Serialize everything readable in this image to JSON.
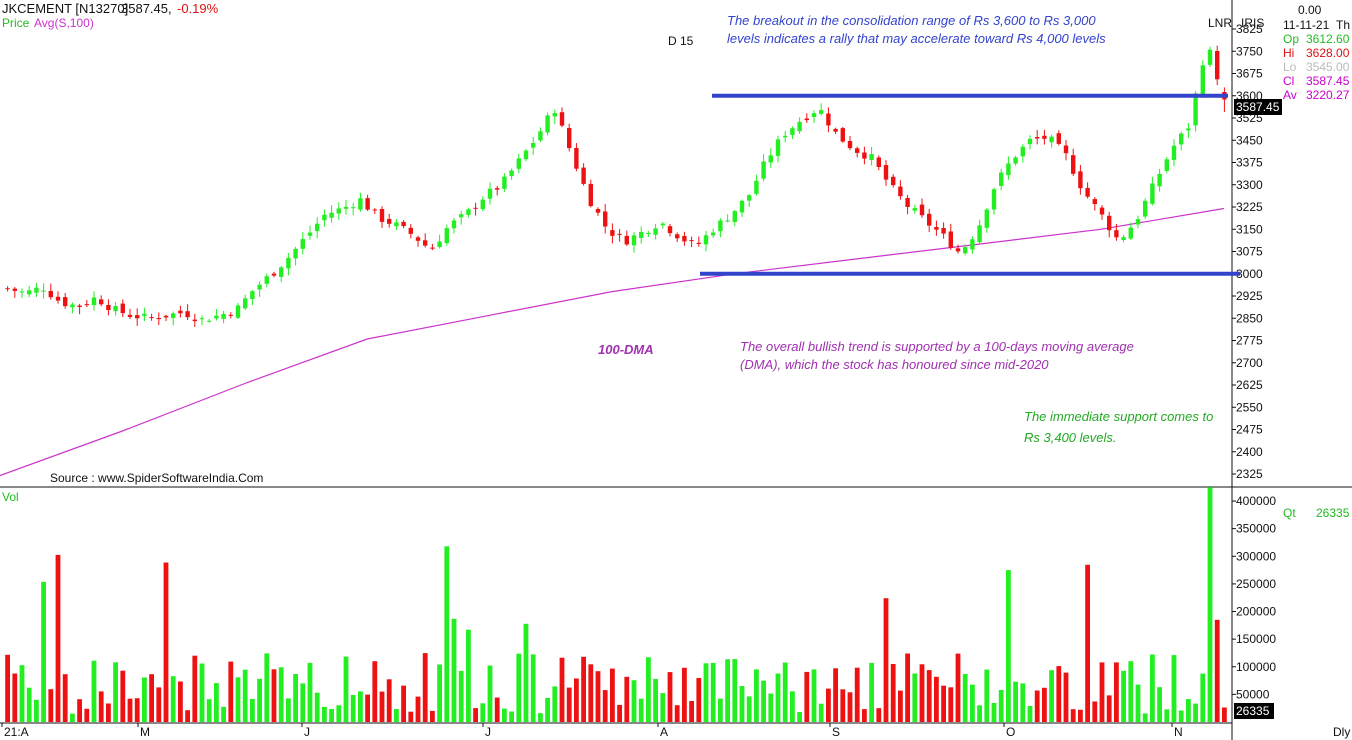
{
  "header": {
    "symbol": "JKCEMENT [N13270]",
    "last": "3587.45,",
    "change": "-0.19%",
    "price_label": "Price",
    "avg_label": "Avg(S,100)"
  },
  "labels": {
    "d15": "D 15",
    "lnr": "LNR",
    "iris": "IRIS",
    "source": "Source : www.SpiderSoftwareIndia.Com",
    "dma": "100-DMA",
    "vol": "Vol",
    "dly": "Dly",
    "qt_label": "Qt",
    "qt_value": "26335",
    "last_price_tag": "3587.45",
    "last_vol_tag": "26335"
  },
  "annotations": {
    "breakout_line1": "The breakout in the consolidation range of Rs 3,600 to Rs 3,000",
    "breakout_line2": "levels indicates a rally that may accelerate toward Rs 4,000 levels",
    "trend_line1": "The overall bullish trend is supported by a 100-days moving average",
    "trend_line2": "(DMA), which the stock has honoured since mid-2020",
    "support_line1": "The immediate support comes to",
    "support_line2": "Rs 3,400 levels."
  },
  "info_panel": {
    "value": "0.00",
    "date": "11-11-21",
    "day": "Th",
    "rows": [
      {
        "k": "Op",
        "v": "3612.60",
        "color": "#22bb22"
      },
      {
        "k": "Hi",
        "v": "3628.00",
        "color": "#e01010"
      },
      {
        "k": "Lo",
        "v": "3545.00",
        "color": "#bbbbbb"
      },
      {
        "k": "Cl",
        "v": "3587.45",
        "color": "#cc00cc"
      },
      {
        "k": "Av",
        "v": "3220.27",
        "color": "#cc00cc"
      }
    ]
  },
  "colors": {
    "up": "#22ee22",
    "down": "#ee1111",
    "dma": "#cc33cc",
    "level_line": "#3344cc",
    "annotation_blue": "#3344cc",
    "annotation_purple": "#a030b0",
    "annotation_green": "#22aa22",
    "text": "#111111"
  },
  "chart_data": [
    {
      "type": "candlestick",
      "title": "JKCEMENT [N13270]",
      "x_tick_labels": [
        "21:A",
        "M",
        "J",
        "J",
        "A",
        "S",
        "O",
        "N"
      ],
      "y_ticks": [
        2325,
        2400,
        2475,
        2550,
        2625,
        2700,
        2775,
        2850,
        2925,
        3000,
        3075,
        3150,
        3225,
        3300,
        3375,
        3450,
        3525,
        3600,
        3675,
        3750,
        3825
      ],
      "ylim": [
        2325,
        3825
      ],
      "horizontal_levels": [
        3600,
        3000
      ],
      "series": [
        {
          "name": "Price",
          "kind": "candles",
          "close_path": [
            2950,
            2935,
            2955,
            2905,
            2890,
            2920,
            2880,
            2860,
            2850,
            2860,
            2870,
            2845,
            2860,
            2880,
            2950,
            3000,
            3060,
            3130,
            3200,
            3220,
            3250,
            3190,
            3165,
            3130,
            3080,
            3160,
            3200,
            3260,
            3300,
            3380,
            3460,
            3560,
            3400,
            3250,
            3150,
            3110,
            3140,
            3175,
            3130,
            3090,
            3150,
            3200,
            3260,
            3380,
            3470,
            3520,
            3560,
            3470,
            3420,
            3390,
            3300,
            3230,
            3180,
            3130,
            3070,
            3150,
            3300,
            3390,
            3450,
            3460,
            3400,
            3280,
            3200,
            3110,
            3180,
            3300,
            3420,
            3500,
            3780,
            3587.45
          ]
        },
        {
          "name": "Avg(S,100)",
          "kind": "line",
          "points": [
            [
              0,
              2320
            ],
            [
              0.1,
              2470
            ],
            [
              0.2,
              2630
            ],
            [
              0.3,
              2780
            ],
            [
              0.4,
              2860
            ],
            [
              0.5,
              2940
            ],
            [
              0.6,
              3000
            ],
            [
              0.7,
              3050
            ],
            [
              0.8,
              3100
            ],
            [
              0.9,
              3150
            ],
            [
              1.0,
              3220
            ]
          ]
        }
      ]
    },
    {
      "type": "bar",
      "title": "Vol",
      "y_ticks": [
        50000,
        100000,
        150000,
        200000,
        250000,
        300000,
        350000,
        400000
      ],
      "ylim": [
        0,
        420000
      ],
      "last_value": 26335
    }
  ]
}
